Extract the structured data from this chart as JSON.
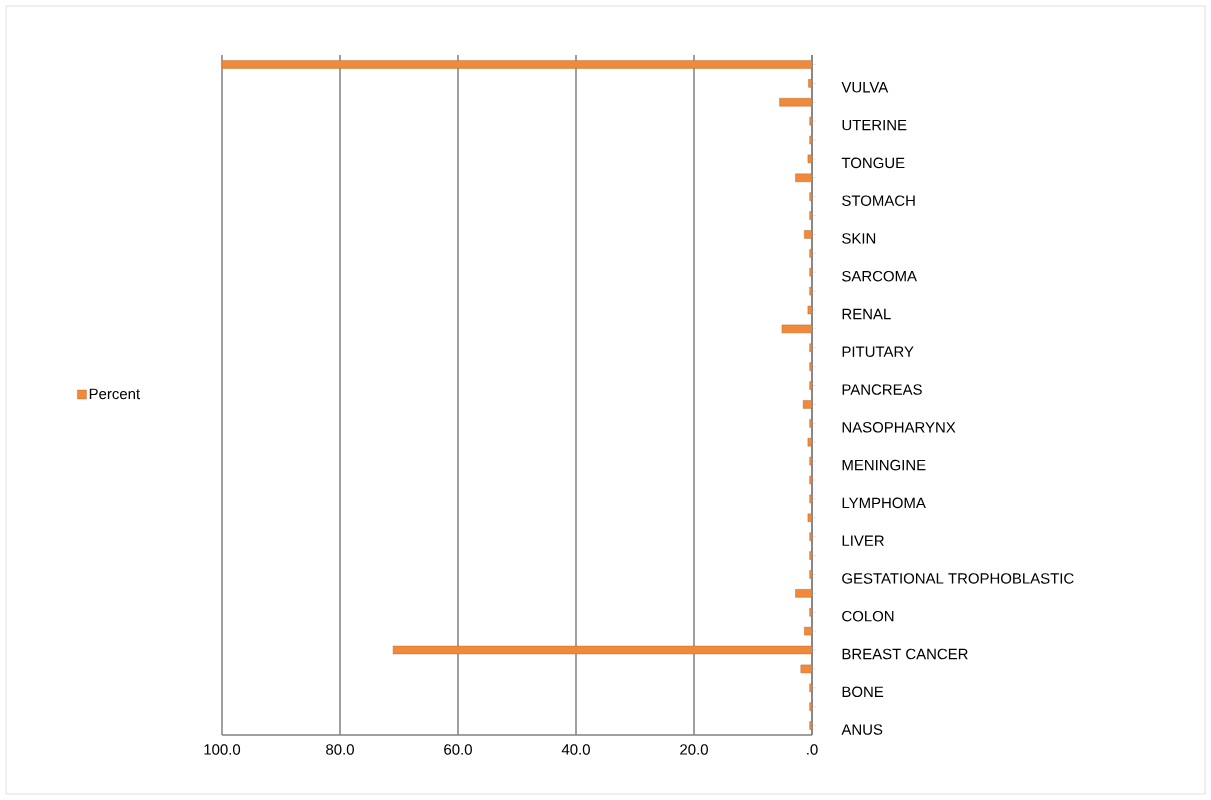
{
  "chart_data": {
    "type": "bar",
    "orientation": "horizontal",
    "categories": [
      null,
      "VULVA",
      null,
      "UTERINE",
      null,
      "TONGUE",
      null,
      "STOMACH",
      null,
      "SKIN",
      null,
      "SARCOMA",
      null,
      "RENAL",
      null,
      "PITUTARY",
      null,
      "PANCREAS",
      null,
      "NASOPHARYNX",
      null,
      "MENINGINE",
      null,
      "LYMPHOMA",
      null,
      "LIVER",
      null,
      "GESTATIONAL TROPHOBLASTIC",
      null,
      "COLON",
      null,
      "BREAST CANCER",
      null,
      "BONE",
      null,
      "ANUS"
    ],
    "series": [
      {
        "name": "Percent",
        "color": "#f08a3a",
        "values": [
          100,
          0.6,
          5.5,
          0.4,
          0.4,
          0.7,
          2.8,
          0.4,
          0.4,
          1.3,
          0.4,
          0.4,
          0.4,
          0.7,
          5.1,
          0.4,
          0.4,
          0.4,
          1.5,
          0.4,
          0.7,
          0.4,
          0.4,
          0.4,
          0.7,
          0.4,
          0.4,
          0.4,
          2.8,
          0.4,
          1.3,
          71.0,
          1.9,
          0.4,
          0.4,
          0.4
        ]
      }
    ],
    "xlim": [
      100,
      0
    ],
    "xticks": [
      {
        "value": 100,
        "label": "100.0"
      },
      {
        "value": 80,
        "label": "80.0"
      },
      {
        "value": 60,
        "label": "60.0"
      },
      {
        "value": 40,
        "label": "40.0"
      },
      {
        "value": 20,
        "label": "20.0"
      },
      {
        "value": 0,
        "label": ".0"
      }
    ],
    "grid": "x",
    "legend": "left"
  }
}
